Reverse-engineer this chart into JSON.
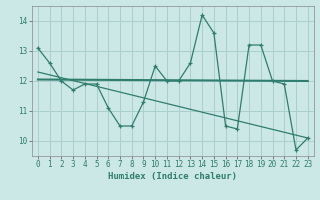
{
  "x": [
    0,
    1,
    2,
    3,
    4,
    5,
    6,
    7,
    8,
    9,
    10,
    11,
    12,
    13,
    14,
    15,
    16,
    17,
    18,
    19,
    20,
    21,
    22,
    23
  ],
  "y": [
    13.1,
    12.6,
    12.0,
    11.7,
    11.9,
    11.9,
    11.1,
    10.5,
    10.5,
    11.3,
    12.5,
    12.0,
    12.0,
    12.6,
    14.2,
    13.6,
    10.5,
    10.4,
    13.2,
    13.2,
    12.0,
    11.9,
    9.7,
    10.1
  ],
  "trend1_x": [
    0,
    23
  ],
  "trend1_y": [
    12.05,
    12.0
  ],
  "trend2_x": [
    0,
    23
  ],
  "trend2_y": [
    12.3,
    10.1
  ],
  "line_color": "#2e7d6e",
  "bg_color": "#cce8e6",
  "grid_color": "#aacfcd",
  "xlabel": "Humidex (Indice chaleur)",
  "ylim": [
    9.5,
    14.5
  ],
  "xlim": [
    -0.5,
    23.5
  ],
  "yticks": [
    10,
    11,
    12,
    13,
    14
  ],
  "xticks": [
    0,
    1,
    2,
    3,
    4,
    5,
    6,
    7,
    8,
    9,
    10,
    11,
    12,
    13,
    14,
    15,
    16,
    17,
    18,
    19,
    20,
    21,
    22,
    23
  ],
  "xlabel_fontsize": 6.5,
  "tick_fontsize": 5.5
}
